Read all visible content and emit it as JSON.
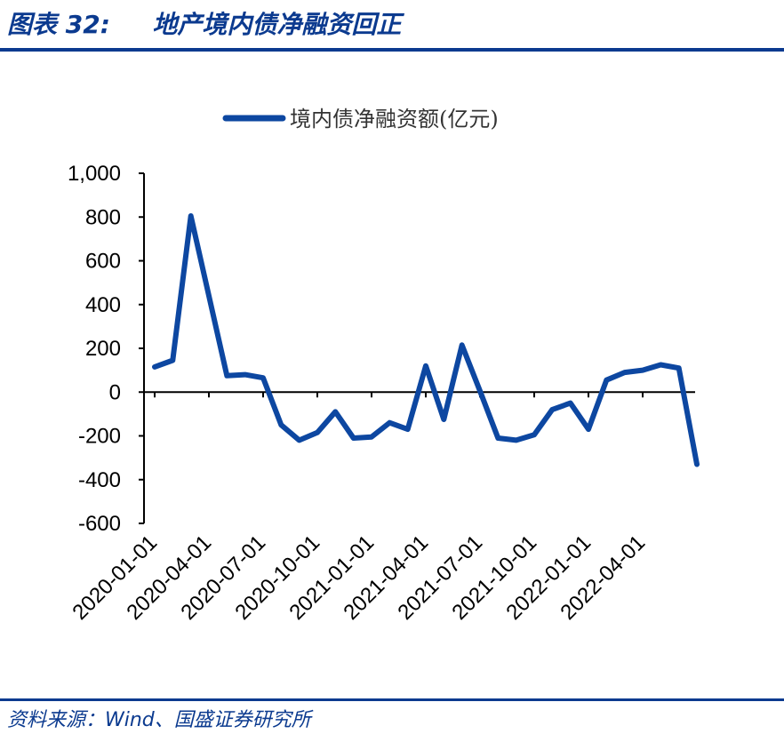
{
  "header": {
    "figure_label": "图表 32:",
    "title": "地产境内债净融资回正"
  },
  "footer": {
    "source": "资料来源：Wind、国盛证券研究所"
  },
  "colors": {
    "accent": "#0b3a8f",
    "series": "#0d47a1",
    "axis": "#000000"
  },
  "chart_data": {
    "type": "line",
    "title": "",
    "xlabel": "",
    "ylabel": "",
    "legend_position": "top-center",
    "ylim": [
      -600,
      1000
    ],
    "yticks": [
      1000,
      800,
      600,
      400,
      200,
      0,
      -200,
      -400,
      -600
    ],
    "ytick_labels": [
      "1,000",
      "800",
      "600",
      "400",
      "200",
      "0",
      "-200",
      "-400",
      "-600"
    ],
    "x_tick_labels": [
      "2020-01-01",
      "2020-04-01",
      "2020-07-01",
      "2020-10-01",
      "2021-01-01",
      "2021-04-01",
      "2021-07-01",
      "2021-10-01",
      "2022-01-01",
      "2022-04-01"
    ],
    "grid": false,
    "x": [
      "2020-01",
      "2020-02",
      "2020-03",
      "2020-04",
      "2020-05",
      "2020-06",
      "2020-07",
      "2020-08",
      "2020-09",
      "2020-10",
      "2020-11",
      "2020-12",
      "2021-01",
      "2021-02",
      "2021-03",
      "2021-04",
      "2021-05",
      "2021-06",
      "2021-07",
      "2021-08",
      "2021-09",
      "2021-10",
      "2021-11",
      "2021-12",
      "2022-01",
      "2022-02",
      "2022-03",
      "2022-04",
      "2022-05",
      "2022-06",
      "2022-07"
    ],
    "series": [
      {
        "name": "境内债净融资额(亿元)",
        "values": [
          115,
          145,
          805,
          440,
          75,
          80,
          65,
          -150,
          -220,
          -185,
          -90,
          -210,
          -205,
          -140,
          -170,
          120,
          -125,
          215,
          5,
          -210,
          -220,
          -195,
          -80,
          -50,
          -170,
          55,
          90,
          100,
          125,
          110,
          -330
        ]
      }
    ]
  }
}
